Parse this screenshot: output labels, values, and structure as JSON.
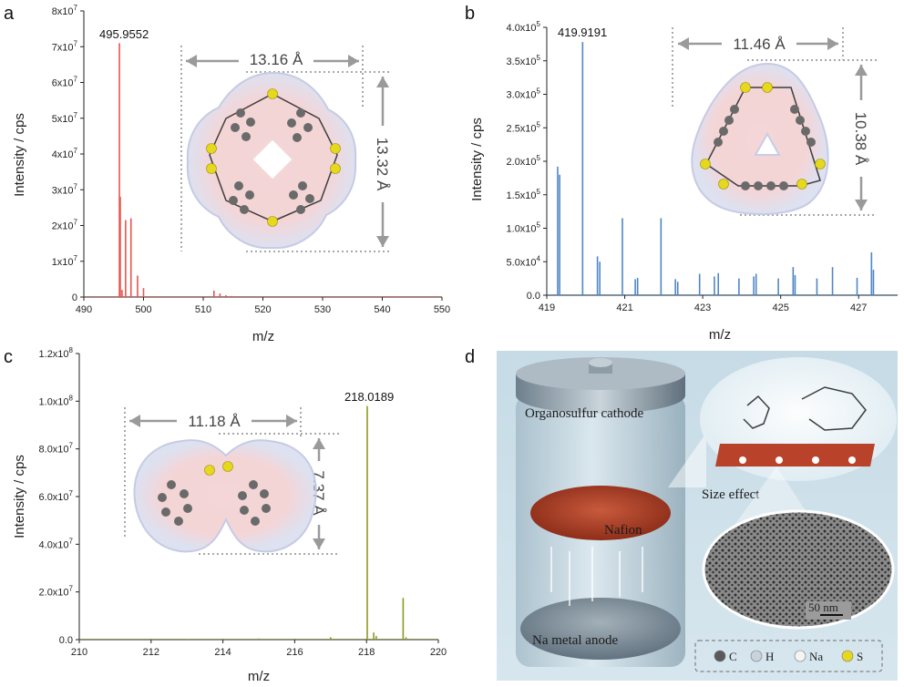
{
  "panels": {
    "a": "a",
    "b": "b",
    "c": "c",
    "d": "d"
  },
  "colors": {
    "a": "#e8544f",
    "b": "#4f86c6",
    "c": "#8d9a1e",
    "axis": "#222222",
    "dims": "#9a9a9a"
  },
  "chart_data": [
    {
      "id": "a",
      "type": "line",
      "xlabel": "m/z",
      "ylabel": "Intensity / cps",
      "xlim": [
        490,
        550
      ],
      "ylim": [
        0,
        80000000
      ],
      "xticks": [
        "490",
        "500",
        "510",
        "520",
        "530",
        "540",
        "550"
      ],
      "yticks": [
        "0",
        "1x10^7",
        "2x10^7",
        "3x10^7",
        "4x10^7",
        "5x10^7",
        "6x10^7",
        "7x10^7",
        "8x10^7"
      ],
      "peak_label": "495.9552",
      "peaks": [
        {
          "x": 495.96,
          "y": 71000000
        },
        {
          "x": 496.1,
          "y": 28000000
        },
        {
          "x": 496.4,
          "y": 2000000
        },
        {
          "x": 497.0,
          "y": 21500000
        },
        {
          "x": 497.9,
          "y": 22000000
        },
        {
          "x": 499.0,
          "y": 6000000
        },
        {
          "x": 500.0,
          "y": 2500000
        },
        {
          "x": 511.8,
          "y": 1800000
        },
        {
          "x": 512.8,
          "y": 1000000
        },
        {
          "x": 513.8,
          "y": 500000
        },
        {
          "x": 514.8,
          "y": 300000
        },
        {
          "x": 542.5,
          "y": 200000
        }
      ],
      "dims": {
        "width": "13.16 Å",
        "height": "13.32 Å"
      }
    },
    {
      "id": "b",
      "type": "line",
      "xlabel": "m/z",
      "ylabel": "Intensity / cps",
      "xlim": [
        419,
        428
      ],
      "ylim": [
        0,
        400000
      ],
      "xticks": [
        "419",
        "421",
        "423",
        "425",
        "427"
      ],
      "yticks": [
        "0.0",
        "5.0x10^4",
        "1.0x10^5",
        "1.5x10^5",
        "2.0x10^5",
        "2.5x10^5",
        "3.0x10^5",
        "3.5x10^5",
        "4.0x10^5"
      ],
      "peak_label": "419.9191",
      "peaks": [
        {
          "x": 419.28,
          "y": 192000
        },
        {
          "x": 419.33,
          "y": 180000
        },
        {
          "x": 419.92,
          "y": 378000
        },
        {
          "x": 420.3,
          "y": 58000
        },
        {
          "x": 420.36,
          "y": 50000
        },
        {
          "x": 420.94,
          "y": 115000
        },
        {
          "x": 421.27,
          "y": 24000
        },
        {
          "x": 421.33,
          "y": 26000
        },
        {
          "x": 421.93,
          "y": 115000
        },
        {
          "x": 422.3,
          "y": 24000
        },
        {
          "x": 422.36,
          "y": 20000
        },
        {
          "x": 422.92,
          "y": 32000
        },
        {
          "x": 423.3,
          "y": 28000
        },
        {
          "x": 423.4,
          "y": 33000
        },
        {
          "x": 423.93,
          "y": 25000
        },
        {
          "x": 424.31,
          "y": 28000
        },
        {
          "x": 424.37,
          "y": 32000
        },
        {
          "x": 424.94,
          "y": 25000
        },
        {
          "x": 425.32,
          "y": 42000
        },
        {
          "x": 425.37,
          "y": 30000
        },
        {
          "x": 425.93,
          "y": 25000
        },
        {
          "x": 426.33,
          "y": 42000
        },
        {
          "x": 426.96,
          "y": 26000
        },
        {
          "x": 427.33,
          "y": 64000
        },
        {
          "x": 427.38,
          "y": 38000
        }
      ],
      "dims": {
        "width": "11.46 Å",
        "height": "10.38 Å"
      }
    },
    {
      "id": "c",
      "type": "line",
      "xlabel": "m/z",
      "ylabel": "Intensity / cps",
      "xlim": [
        210,
        220
      ],
      "ylim": [
        0,
        120000000
      ],
      "xticks": [
        "210",
        "212",
        "214",
        "216",
        "218",
        "220"
      ],
      "yticks": [
        "0.0",
        "2.0x10^7",
        "4.0x10^7",
        "6.0x10^7",
        "8.0x10^7",
        "1.0x10^8",
        "1.2x10^8"
      ],
      "peak_label": "218.0189",
      "peaks": [
        {
          "x": 218.02,
          "y": 98000000
        },
        {
          "x": 218.2,
          "y": 3000000
        },
        {
          "x": 218.27,
          "y": 1500000
        },
        {
          "x": 219.02,
          "y": 17500000
        },
        {
          "x": 219.1,
          "y": 1000000
        },
        {
          "x": 217.0,
          "y": 1000000
        },
        {
          "x": 215.0,
          "y": 500000
        },
        {
          "x": 213.0,
          "y": 300000
        }
      ],
      "dims": {
        "width": "11.18 Å",
        "height": "7.37 Å"
      }
    }
  ],
  "scene": {
    "cathode": "Organosulfur cathode",
    "nafion": "Nafion",
    "anode": "Na metal anode",
    "size_effect": "Size effect",
    "scalebar": "50 nm",
    "legend": [
      {
        "label": "C",
        "color": "#5a5a5a"
      },
      {
        "label": "H",
        "color": "#c9d3dc"
      },
      {
        "label": "Na",
        "color": "#f4f4f4"
      },
      {
        "label": "S",
        "color": "#e6d81c"
      }
    ]
  }
}
